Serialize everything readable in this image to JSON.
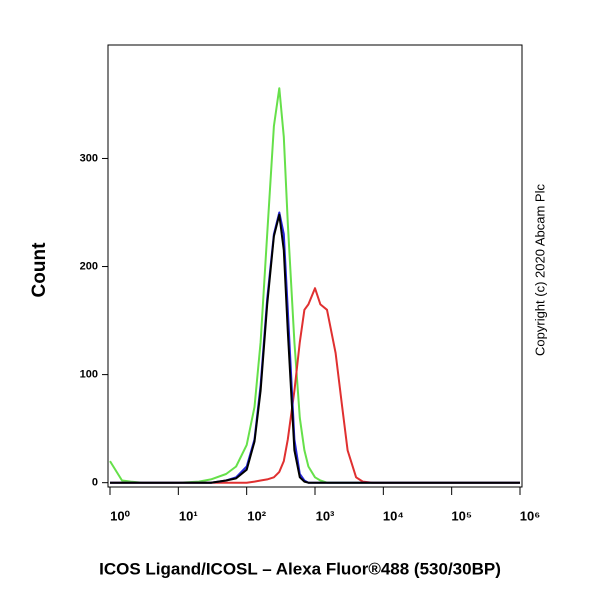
{
  "chart_data": {
    "type": "line",
    "title": "ICOS Ligand/ICOSL – Alexa Fluor®488 (530/30BP)",
    "y_label": "Count",
    "annotation": "Copyright (c) 2020 Abcam Plc",
    "log_x": true,
    "x": [
      1,
      1.5,
      2,
      3,
      5,
      10,
      20,
      30,
      50,
      70,
      100,
      130,
      160,
      200,
      250,
      300,
      350,
      400,
      500,
      600,
      700,
      800,
      1000,
      1200,
      1500,
      2000,
      2500,
      3000,
      4000,
      5000,
      7000,
      10000,
      100000,
      1000000
    ],
    "series": [
      {
        "color": "#66e04a",
        "values": [
          20,
          2,
          1,
          0,
          0,
          0,
          1,
          3,
          8,
          15,
          35,
          70,
          130,
          230,
          330,
          365,
          320,
          240,
          130,
          60,
          30,
          15,
          5,
          2,
          0,
          0,
          0,
          0,
          0,
          0,
          0,
          0,
          0,
          0
        ]
      },
      {
        "color": "#e03030",
        "values": [
          0,
          0,
          0,
          0,
          0,
          0,
          0,
          0,
          0,
          0,
          0,
          1,
          2,
          3,
          5,
          10,
          20,
          40,
          85,
          130,
          160,
          165,
          180,
          165,
          160,
          120,
          70,
          30,
          5,
          1,
          0,
          0,
          0,
          0
        ]
      },
      {
        "color": "#2626d8",
        "values": [
          0,
          0,
          0,
          0,
          0,
          0,
          0,
          0,
          2,
          5,
          15,
          40,
          90,
          170,
          230,
          250,
          230,
          160,
          40,
          8,
          2,
          0,
          0,
          0,
          0,
          0,
          0,
          0,
          0,
          0,
          0,
          0,
          0,
          0
        ]
      },
      {
        "color": "#000000",
        "values": [
          0,
          0,
          0,
          0,
          0,
          0,
          0,
          0,
          2,
          4,
          12,
          38,
          85,
          165,
          228,
          248,
          215,
          140,
          30,
          5,
          1,
          0,
          0,
          0,
          0,
          0,
          0,
          0,
          0,
          0,
          0,
          0,
          0,
          0
        ]
      }
    ],
    "xlim": [
      1,
      1000000
    ],
    "xticks": [
      {
        "value": 1,
        "label": "10⁰"
      },
      {
        "value": 10,
        "label": "10¹"
      },
      {
        "value": 100,
        "label": "10²"
      },
      {
        "value": 1000,
        "label": "10³"
      },
      {
        "value": 10000,
        "label": "10⁴"
      },
      {
        "value": 100000,
        "label": "10⁵"
      },
      {
        "value": 1000000,
        "label": "10⁶"
      }
    ],
    "ylim": [
      -4,
      405
    ],
    "yticks": [
      0,
      100,
      200,
      300
    ]
  }
}
